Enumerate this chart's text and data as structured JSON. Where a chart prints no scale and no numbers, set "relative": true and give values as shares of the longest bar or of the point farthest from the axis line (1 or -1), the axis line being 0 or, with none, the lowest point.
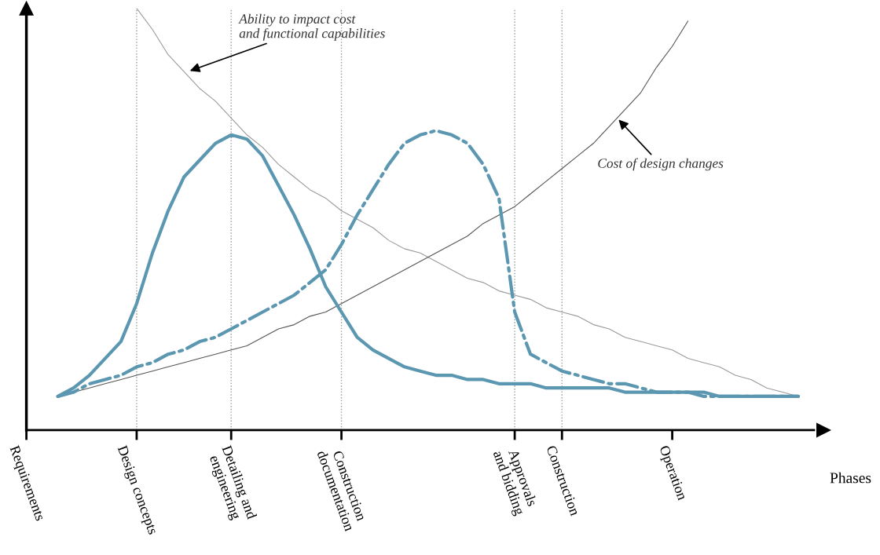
{
  "chart_data": {
    "type": "line",
    "relative": true,
    "xlabel": "Phases",
    "categories": [
      "Requirements",
      null,
      null,
      null,
      null,
      null,
      null,
      "Design concepts",
      null,
      null,
      null,
      null,
      null,
      "Detailing and\nengineering",
      null,
      null,
      null,
      null,
      null,
      null,
      "Construction\ndocumentation",
      null,
      null,
      null,
      null,
      null,
      null,
      null,
      null,
      null,
      null,
      "Approvals\nand bidding",
      null,
      null,
      "Construction",
      null,
      null,
      null,
      null,
      null,
      null,
      "Operation",
      null,
      null,
      null,
      null,
      null,
      null,
      null,
      null,
      null
    ],
    "tick_labels": "x",
    "grid": false,
    "legend": false,
    "marker": "none",
    "series": [
      {
        "color": "#9a9a9a",
        "line_style": "solid",
        "values": [
          null,
          null,
          null,
          null,
          null,
          null,
          null,
          1,
          0.95,
          0.89,
          0.85,
          0.81,
          0.78,
          0.74,
          0.7,
          0.67,
          0.63,
          0.6,
          0.57,
          0.55,
          0.52,
          0.5,
          0.48,
          0.45,
          0.43,
          0.42,
          0.4,
          0.38,
          0.36,
          0.35,
          0.33,
          0.32,
          0.31,
          0.29,
          0.28,
          0.27,
          0.25,
          0.24,
          0.22,
          0.21,
          0.2,
          0.19,
          0.17,
          0.16,
          0.15,
          0.13,
          0.12,
          0.1,
          0.09,
          0.08,
          null
        ]
      },
      {
        "color": "#555555",
        "line_style": "solid",
        "values": [
          null,
          null,
          0.08,
          0.09,
          0.1,
          0.11,
          0.12,
          0.13,
          0.14,
          0.15,
          0.16,
          0.17,
          0.18,
          0.19,
          0.2,
          0.22,
          0.24,
          0.25,
          0.27,
          0.28,
          0.3,
          0.32,
          0.34,
          0.36,
          0.38,
          0.4,
          0.42,
          0.44,
          0.46,
          0.49,
          0.51,
          0.53,
          0.56,
          0.59,
          0.62,
          0.65,
          0.68,
          0.72,
          0.76,
          0.8,
          0.86,
          0.91,
          0.97,
          null,
          null,
          null,
          null,
          null,
          null,
          null,
          null
        ]
      },
      {
        "color": "#5b97b0",
        "line_style": "solid",
        "values": [
          null,
          null,
          0.08,
          0.1,
          0.13,
          0.17,
          0.21,
          0.3,
          0.42,
          0.52,
          0.6,
          0.64,
          0.68,
          0.7,
          0.69,
          0.65,
          0.58,
          0.51,
          0.43,
          0.34,
          0.28,
          0.22,
          0.19,
          0.17,
          0.15,
          0.14,
          0.13,
          0.13,
          0.12,
          0.12,
          0.11,
          0.11,
          0.11,
          0.1,
          0.1,
          0.1,
          0.1,
          0.1,
          0.09,
          0.09,
          0.09,
          0.09,
          0.09,
          0.09,
          0.08,
          0.08,
          0.08,
          0.08,
          0.08,
          0.08,
          null
        ]
      },
      {
        "color": "#5b97b0",
        "line_style": "dashdot",
        "values": [
          null,
          null,
          0.08,
          0.09,
          0.11,
          0.12,
          0.13,
          0.15,
          0.16,
          0.18,
          0.19,
          0.21,
          0.22,
          0.24,
          0.26,
          0.28,
          0.3,
          0.32,
          0.35,
          0.38,
          0.44,
          0.51,
          0.57,
          0.63,
          0.68,
          0.7,
          0.71,
          0.7,
          0.68,
          0.63,
          0.55,
          0.28,
          0.18,
          0.16,
          0.14,
          0.13,
          0.12,
          0.11,
          0.11,
          0.1,
          0.09,
          0.09,
          0.09,
          0.08,
          0.08,
          0.08,
          0.08,
          0.08,
          0.08,
          0.08,
          null
        ]
      }
    ],
    "ref_lines": [
      {
        "axis": "x",
        "value": "Design concepts",
        "color": "#999999",
        "line_style": "dotted"
      },
      {
        "axis": "x",
        "value": "Detailing and\nengineering",
        "color": "#999999",
        "line_style": "dotted"
      },
      {
        "axis": "x",
        "value": "Construction\ndocumentation",
        "color": "#999999",
        "line_style": "dotted"
      },
      {
        "axis": "x",
        "value": "Approvals\nand bidding",
        "color": "#999999",
        "line_style": "dotted"
      },
      {
        "axis": "x",
        "value": "Construction",
        "color": "#999999",
        "line_style": "dotted"
      }
    ],
    "annotations": [
      "Ability to impact cost\nand functional capabilities",
      "Cost of design changes"
    ]
  }
}
